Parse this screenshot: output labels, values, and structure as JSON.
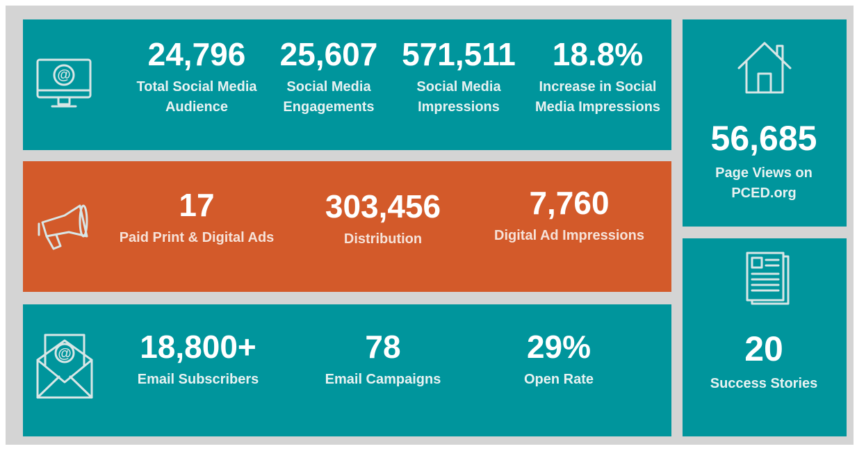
{
  "panels": [
    {
      "stats": [
        {
          "value": "24,796",
          "label": [
            "Total Social Media",
            "Audience"
          ]
        },
        {
          "value": "25,607",
          "label": [
            "Social Media",
            "Engagements"
          ]
        },
        {
          "value": "571,511",
          "label": [
            "Social Media",
            "Impressions"
          ]
        },
        {
          "value": "18.8%",
          "label": [
            "Increase in Social",
            "Media Impressions"
          ]
        }
      ]
    },
    {
      "stats": [
        {
          "value": "17",
          "label": [
            "Paid Print & Digital Ads"
          ]
        },
        {
          "value": "303,456",
          "label": [
            "Distribution"
          ]
        },
        {
          "value": "7,760",
          "label": [
            "Digital Ad Impressions"
          ]
        }
      ]
    },
    {
      "stats": [
        {
          "value": "18,800+",
          "label": [
            "Email Subscribers"
          ]
        },
        {
          "value": "78",
          "label": [
            "Email Campaigns"
          ]
        },
        {
          "value": "29%",
          "label": [
            "Open Rate"
          ]
        }
      ]
    },
    {
      "stats": [
        {
          "value": "56,685",
          "label": [
            "Page Views on",
            "PCED.org"
          ]
        }
      ]
    },
    {
      "stats": [
        {
          "value": "20",
          "label": [
            "Success Stories"
          ]
        }
      ]
    }
  ]
}
